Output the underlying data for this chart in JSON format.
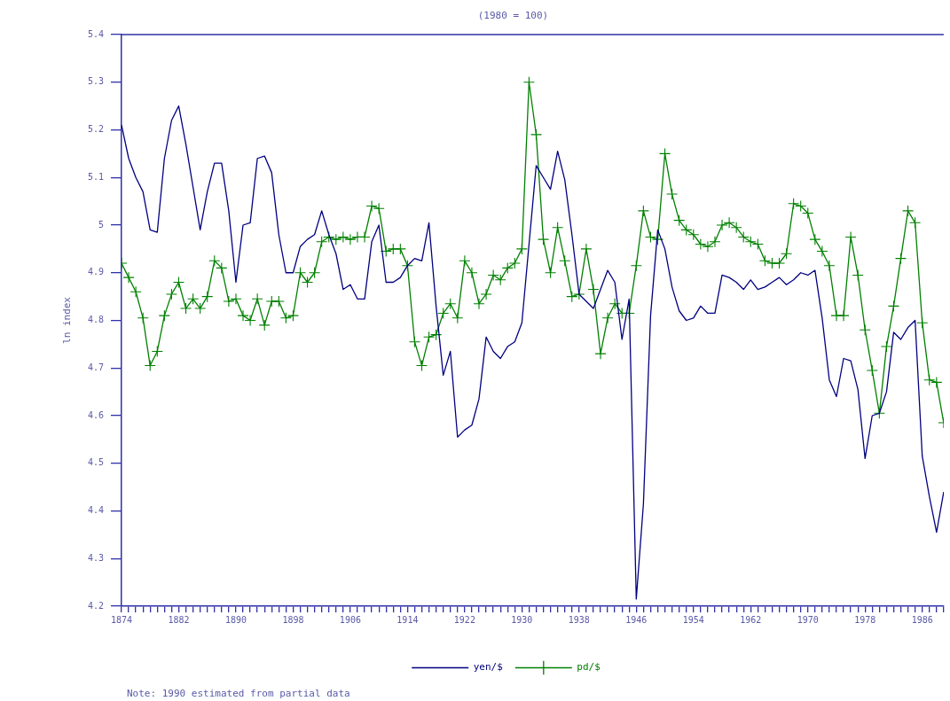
{
  "chart_data": {
    "type": "line",
    "title": "(1980 = 100)",
    "ylabel": "ln index",
    "annotations": [
      "Note: 1990 estimated from partial data"
    ],
    "xlim": [
      1874,
      1989
    ],
    "ylim": [
      4.2,
      5.4
    ],
    "xticks": [
      1874,
      {
        "value": 1875,
        "label": null
      },
      {
        "value": 1876,
        "label": null
      },
      {
        "value": 1877,
        "label": null
      },
      {
        "value": 1878,
        "label": null
      },
      {
        "value": 1879,
        "label": null
      },
      {
        "value": 1880,
        "label": null
      },
      {
        "value": 1881,
        "label": null
      },
      1882,
      {
        "value": 1883,
        "label": null
      },
      {
        "value": 1884,
        "label": null
      },
      {
        "value": 1885,
        "label": null
      },
      {
        "value": 1886,
        "label": null
      },
      {
        "value": 1887,
        "label": null
      },
      {
        "value": 1888,
        "label": null
      },
      {
        "value": 1889,
        "label": null
      },
      1890,
      {
        "value": 1891,
        "label": null
      },
      {
        "value": 1892,
        "label": null
      },
      {
        "value": 1893,
        "label": null
      },
      {
        "value": 1894,
        "label": null
      },
      {
        "value": 1895,
        "label": null
      },
      {
        "value": 1896,
        "label": null
      },
      {
        "value": 1897,
        "label": null
      },
      1898,
      {
        "value": 1899,
        "label": null
      },
      {
        "value": 1900,
        "label": null
      },
      {
        "value": 1901,
        "label": null
      },
      {
        "value": 1902,
        "label": null
      },
      {
        "value": 1903,
        "label": null
      },
      {
        "value": 1904,
        "label": null
      },
      {
        "value": 1905,
        "label": null
      },
      1906,
      {
        "value": 1907,
        "label": null
      },
      {
        "value": 1908,
        "label": null
      },
      {
        "value": 1909,
        "label": null
      },
      {
        "value": 1910,
        "label": null
      },
      {
        "value": 1911,
        "label": null
      },
      {
        "value": 1912,
        "label": null
      },
      {
        "value": 1913,
        "label": null
      },
      1914,
      {
        "value": 1915,
        "label": null
      },
      {
        "value": 1916,
        "label": null
      },
      {
        "value": 1917,
        "label": null
      },
      {
        "value": 1918,
        "label": null
      },
      {
        "value": 1919,
        "label": null
      },
      {
        "value": 1920,
        "label": null
      },
      {
        "value": 1921,
        "label": null
      },
      1922,
      {
        "value": 1923,
        "label": null
      },
      {
        "value": 1924,
        "label": null
      },
      {
        "value": 1925,
        "label": null
      },
      {
        "value": 1926,
        "label": null
      },
      {
        "value": 1927,
        "label": null
      },
      {
        "value": 1928,
        "label": null
      },
      {
        "value": 1929,
        "label": null
      },
      1930,
      {
        "value": 1931,
        "label": null
      },
      {
        "value": 1932,
        "label": null
      },
      {
        "value": 1933,
        "label": null
      },
      {
        "value": 1934,
        "label": null
      },
      {
        "value": 1935,
        "label": null
      },
      {
        "value": 1936,
        "label": null
      },
      {
        "value": 1937,
        "label": null
      },
      1938,
      {
        "value": 1939,
        "label": null
      },
      {
        "value": 1940,
        "label": null
      },
      {
        "value": 1941,
        "label": null
      },
      {
        "value": 1942,
        "label": null
      },
      {
        "value": 1943,
        "label": null
      },
      {
        "value": 1944,
        "label": null
      },
      {
        "value": 1945,
        "label": null
      },
      1946,
      {
        "value": 1947,
        "label": null
      },
      {
        "value": 1948,
        "label": null
      },
      {
        "value": 1949,
        "label": null
      },
      {
        "value": 1950,
        "label": null
      },
      {
        "value": 1951,
        "label": null
      },
      {
        "value": 1952,
        "label": null
      },
      {
        "value": 1953,
        "label": null
      },
      1954,
      {
        "value": 1955,
        "label": null
      },
      {
        "value": 1956,
        "label": null
      },
      {
        "value": 1957,
        "label": null
      },
      {
        "value": 1958,
        "label": null
      },
      {
        "value": 1959,
        "label": null
      },
      {
        "value": 1960,
        "label": null
      },
      {
        "value": 1961,
        "label": null
      },
      1962,
      {
        "value": 1963,
        "label": null
      },
      {
        "value": 1964,
        "label": null
      },
      {
        "value": 1965,
        "label": null
      },
      {
        "value": 1966,
        "label": null
      },
      {
        "value": 1967,
        "label": null
      },
      {
        "value": 1968,
        "label": null
      },
      {
        "value": 1969,
        "label": null
      },
      1970,
      {
        "value": 1971,
        "label": null
      },
      {
        "value": 1972,
        "label": null
      },
      {
        "value": 1973,
        "label": null
      },
      {
        "value": 1974,
        "label": null
      },
      {
        "value": 1975,
        "label": null
      },
      {
        "value": 1976,
        "label": null
      },
      {
        "value": 1977,
        "label": null
      },
      1978,
      {
        "value": 1979,
        "label": null
      },
      {
        "value": 1980,
        "label": null
      },
      {
        "value": 1981,
        "label": null
      },
      {
        "value": 1982,
        "label": null
      },
      {
        "value": 1983,
        "label": null
      },
      {
        "value": 1984,
        "label": null
      },
      {
        "value": 1985,
        "label": null
      },
      1986,
      {
        "value": 1987,
        "label": null
      },
      {
        "value": 1988,
        "label": null
      },
      {
        "value": 1989,
        "label": null
      }
    ],
    "yticks": [
      4.2,
      4.3,
      4.4,
      4.5,
      4.6,
      4.7,
      4.8,
      4.9,
      5,
      5.1,
      5.2,
      5.3,
      5.4
    ],
    "grid": false,
    "legend": "bottom",
    "line_style": "solid",
    "x": [
      1874,
      1875,
      1876,
      1877,
      1878,
      1879,
      1880,
      1881,
      1882,
      1883,
      1884,
      1885,
      1886,
      1887,
      1888,
      1889,
      1890,
      1891,
      1892,
      1893,
      1894,
      1895,
      1896,
      1897,
      1898,
      1899,
      1900,
      1901,
      1902,
      1903,
      1904,
      1905,
      1906,
      1907,
      1908,
      1909,
      1910,
      1911,
      1912,
      1913,
      1914,
      1915,
      1916,
      1917,
      1918,
      1919,
      1920,
      1921,
      1922,
      1923,
      1924,
      1925,
      1926,
      1927,
      1928,
      1929,
      1930,
      1931,
      1932,
      1933,
      1934,
      1935,
      1936,
      1937,
      1938,
      1939,
      1940,
      1941,
      1942,
      1943,
      1944,
      1945,
      1946,
      1947,
      1948,
      1949,
      1950,
      1951,
      1952,
      1953,
      1954,
      1955,
      1956,
      1957,
      1958,
      1959,
      1960,
      1961,
      1962,
      1963,
      1964,
      1965,
      1966,
      1967,
      1968,
      1969,
      1970,
      1971,
      1972,
      1973,
      1974,
      1975,
      1976,
      1977,
      1978,
      1979,
      1980,
      1981,
      1982,
      1983,
      1984,
      1985,
      1986,
      1987,
      1988,
      1989
    ],
    "series": [
      {
        "name": "yen/$",
        "color": "#000080",
        "marker": "none",
        "values": [
          5.21,
          5.14,
          5.1,
          5.07,
          4.99,
          4.985,
          5.14,
          5.22,
          5.25,
          5.17,
          5.08,
          4.99,
          5.07,
          5.13,
          5.13,
          5.03,
          4.88,
          5.0,
          5.005,
          5.14,
          5.145,
          5.11,
          4.98,
          4.9,
          4.9,
          4.955,
          4.97,
          4.98,
          5.03,
          4.98,
          4.94,
          4.865,
          4.875,
          4.845,
          4.845,
          4.965,
          5.0,
          4.88,
          4.88,
          4.89,
          4.915,
          4.93,
          4.925,
          5.005,
          4.83,
          4.685,
          4.735,
          4.555,
          4.57,
          4.58,
          4.635,
          4.765,
          4.735,
          4.72,
          4.745,
          4.755,
          4.795,
          4.96,
          5.125,
          5.1,
          5.075,
          5.155,
          5.095,
          4.98,
          4.855,
          4.84,
          4.825,
          4.865,
          4.905,
          4.88,
          4.76,
          4.845,
          4.215,
          4.415,
          4.81,
          4.99,
          4.95,
          4.87,
          4.82,
          4.8,
          4.805,
          4.83,
          4.815,
          4.815,
          4.895,
          4.89,
          4.88,
          4.865,
          4.885,
          4.865,
          4.87,
          4.88,
          4.89,
          4.875,
          4.885,
          4.9,
          4.895,
          4.905,
          4.805,
          4.675,
          4.64,
          4.72,
          4.715,
          4.655,
          4.51,
          4.6,
          4.605,
          4.65,
          4.775,
          4.76,
          4.785,
          4.8,
          4.515,
          4.43,
          4.355,
          4.44
        ]
      },
      {
        "name": "pd/$",
        "color": "#008000",
        "marker": "cross",
        "values": [
          4.92,
          4.89,
          4.86,
          4.805,
          4.705,
          4.735,
          4.81,
          4.855,
          4.88,
          4.825,
          4.845,
          4.825,
          4.85,
          4.925,
          4.91,
          4.84,
          4.845,
          4.81,
          4.8,
          4.845,
          4.79,
          4.84,
          4.84,
          4.805,
          4.81,
          4.9,
          4.88,
          4.9,
          4.965,
          4.975,
          4.97,
          4.975,
          4.97,
          4.975,
          4.975,
          5.04,
          5.035,
          4.945,
          4.95,
          4.95,
          4.915,
          4.755,
          4.705,
          4.765,
          4.77,
          4.815,
          4.835,
          4.805,
          4.925,
          4.9,
          4.835,
          4.855,
          4.895,
          4.885,
          4.91,
          4.92,
          4.95,
          5.3,
          5.19,
          4.97,
          4.9,
          4.995,
          4.925,
          4.85,
          4.855,
          4.95,
          4.865,
          4.73,
          4.805,
          4.835,
          4.815,
          4.815,
          4.915,
          5.03,
          4.975,
          4.97,
          5.15,
          5.065,
          5.01,
          4.99,
          4.98,
          4.96,
          4.955,
          4.965,
          5.0,
          5.005,
          4.995,
          4.975,
          4.965,
          4.96,
          4.925,
          4.92,
          4.92,
          4.94,
          5.045,
          5.04,
          5.025,
          4.97,
          4.945,
          4.915,
          4.81,
          4.81,
          4.975,
          4.895,
          4.78,
          4.695,
          4.605,
          4.745,
          4.83,
          4.93,
          5.03,
          5.005,
          4.795,
          4.675,
          4.67,
          4.585
        ]
      }
    ]
  }
}
